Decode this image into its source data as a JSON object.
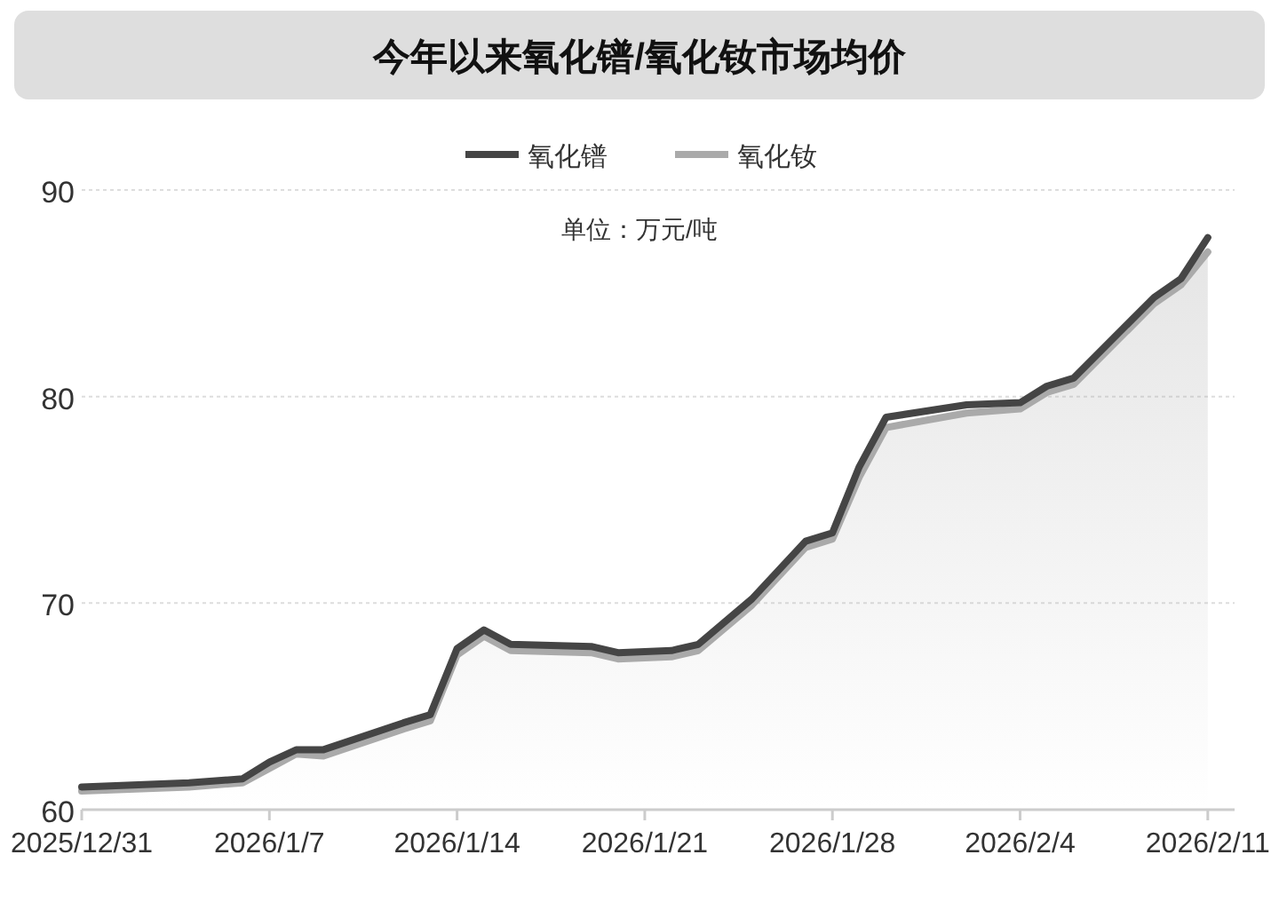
{
  "chart_data": {
    "type": "line",
    "title": "今年以来氧化镨/氧化钕市场均价",
    "annotations": [
      "单位：万元/吨"
    ],
    "x": [
      "2025-12-31",
      "2026-01-04",
      "2026-01-06",
      "2026-01-07",
      "2026-01-08",
      "2026-01-09",
      "2026-01-12",
      "2026-01-13",
      "2026-01-14",
      "2026-01-15",
      "2026-01-16",
      "2026-01-19",
      "2026-01-20",
      "2026-01-22",
      "2026-01-23",
      "2026-01-25",
      "2026-01-27",
      "2026-01-28",
      "2026-01-29",
      "2026-01-30",
      "2026-02-02",
      "2026-02-04",
      "2026-02-05",
      "2026-02-06",
      "2026-02-09",
      "2026-02-10",
      "2026-02-11"
    ],
    "series": [
      {
        "name": "氧化镨",
        "color": "#454545",
        "values": [
          61.1,
          61.3,
          61.5,
          62.3,
          62.9,
          62.9,
          64.2,
          64.6,
          67.8,
          68.7,
          68.0,
          67.9,
          67.6,
          67.7,
          68.0,
          70.2,
          73.0,
          73.4,
          76.6,
          79.0,
          79.6,
          79.7,
          80.5,
          80.9,
          84.8,
          85.7,
          87.7
        ]
      },
      {
        "name": "氧化钕",
        "color": "#aaaaaa",
        "type": "area",
        "values": [
          60.9,
          61.1,
          61.3,
          62.0,
          62.7,
          62.6,
          63.9,
          64.3,
          67.5,
          68.4,
          67.7,
          67.6,
          67.3,
          67.4,
          67.7,
          69.9,
          72.7,
          73.1,
          76.1,
          78.5,
          79.2,
          79.4,
          80.2,
          80.6,
          84.5,
          85.4,
          87.0
        ]
      }
    ],
    "xlim": [
      "2025-12-31",
      "2026-02-12"
    ],
    "xticks": [
      {
        "value": "2025-12-31",
        "label": "2025/12/31"
      },
      {
        "value": "2026-01-07",
        "label": "2026/1/7"
      },
      {
        "value": "2026-01-14",
        "label": "2026/1/14"
      },
      {
        "value": "2026-01-21",
        "label": "2026/1/21"
      },
      {
        "value": "2026-01-28",
        "label": "2026/1/28"
      },
      {
        "value": "2026-02-04",
        "label": "2026/2/4"
      },
      {
        "value": "2026-02-11",
        "label": "2026/2/11"
      }
    ],
    "ylim": [
      60,
      90
    ],
    "yticks": [
      60,
      70,
      80,
      90
    ],
    "grid": "y",
    "legend": "top",
    "marker": "none",
    "line_style": "solid"
  }
}
